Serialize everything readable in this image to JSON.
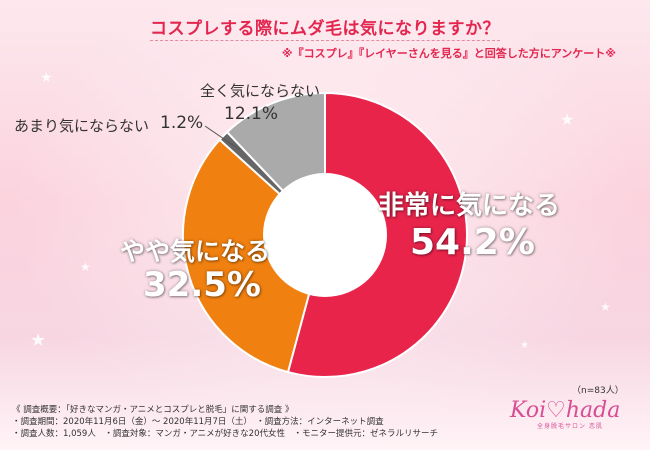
{
  "header": {
    "title": "コスプレする際にムダ毛は気になりますか？",
    "subtitle": "※『コスプレ』『レイヤーさんを見る』と回答した方にアンケート※"
  },
  "chart_data": {
    "type": "pie",
    "variant": "donut",
    "slices": [
      {
        "label": "非常に気になる",
        "value": 54.2,
        "value_text": "54.2%",
        "color": "#e8244b"
      },
      {
        "label": "やや気になる",
        "value": 32.5,
        "value_text": "32.5%",
        "color": "#f08010"
      },
      {
        "label": "あまり気にならない",
        "value": 1.2,
        "value_text": "1.2%",
        "color": "#666666"
      },
      {
        "label": "全く気にならない",
        "value": 12.1,
        "value_text": "12.1%",
        "color": "#aaaaaa"
      }
    ],
    "start": "top",
    "direction": "clockwise"
  },
  "sample_size": "（n=83人）",
  "survey": {
    "line1": "《 調査概要：「好きなマンガ・アニメとコスプレと脱毛」に関する調査 》",
    "line2": "・調査期間：2020年11月6日（金）～ 2020年11月7日（土）　・調査方法：インターネット調査",
    "line3": "・調査人数：1,059人　・調査対象：マンガ・アニメが好きな20代女性　・モニター提供元：ゼネラルリサーチ"
  },
  "logo": {
    "text": "Koi♡hada",
    "subtext": "全身脱毛サロン 恋肌"
  }
}
